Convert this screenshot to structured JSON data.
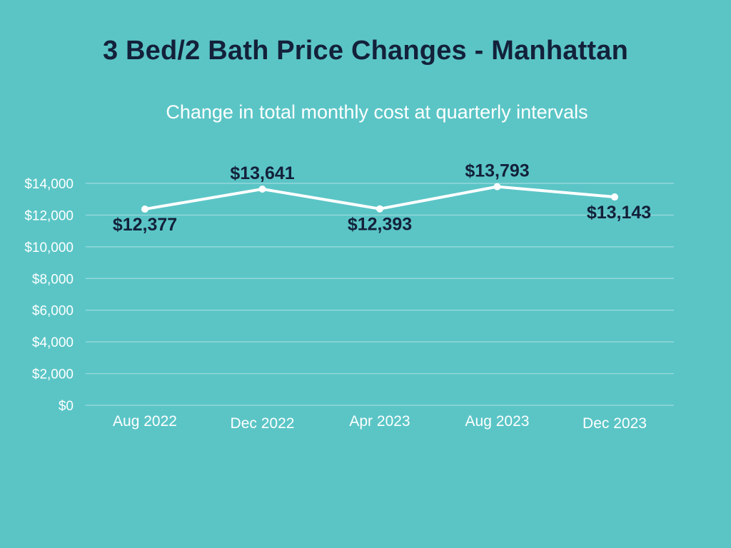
{
  "chart_data": {
    "type": "line",
    "title": "3 Bed/2 Bath Price Changes - Manhattan",
    "subtitle": "Change in total monthly cost at quarterly intervals",
    "xlabel": "",
    "ylabel": "",
    "categories": [
      "Aug 2022",
      "Dec 2022",
      "Apr 2023",
      "Aug 2023",
      "Dec 2023"
    ],
    "series": [
      {
        "name": "Total monthly cost",
        "values": [
          12377,
          13641,
          12393,
          13793,
          13143
        ],
        "labels": [
          "$12,377",
          "$13,641",
          "$12,393",
          "$13,793",
          "$13,143"
        ],
        "label_positions": [
          "below",
          "above",
          "below",
          "above",
          "below"
        ]
      }
    ],
    "ylim": [
      0,
      14000
    ],
    "yticks": [
      0,
      2000,
      4000,
      6000,
      8000,
      10000,
      12000,
      14000
    ],
    "ytick_labels": [
      "$0",
      "$2,000",
      "$4,000",
      "$6,000",
      "$8,000",
      "$10,000",
      "$12,000",
      "$14,000"
    ],
    "grid": true,
    "legend": "none",
    "colors": {
      "background": "#5BC5C6",
      "line": "#FFFFFF",
      "title": "#13213A",
      "gridline": "#9EDBDC"
    }
  }
}
